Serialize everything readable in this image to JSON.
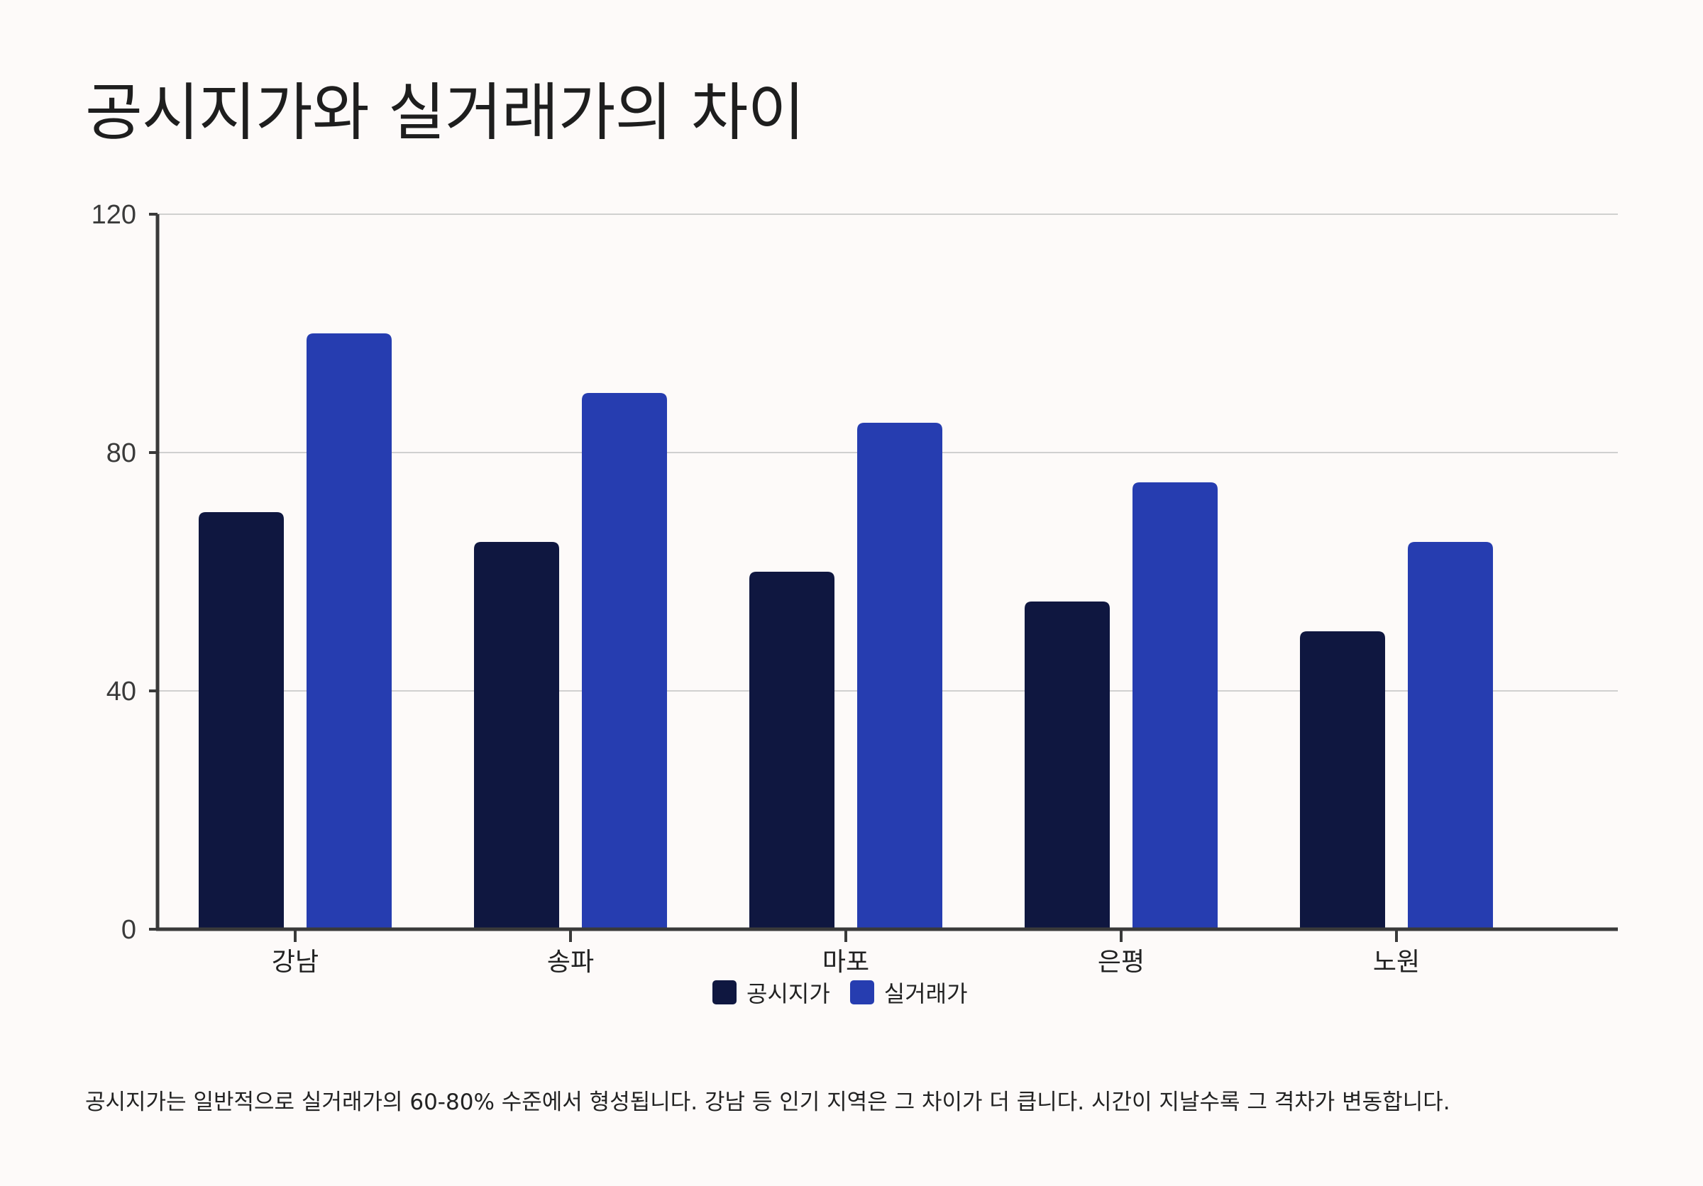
{
  "title": "공시지가와 실거래가의 차이",
  "note": "공시지가는 일반적으로 실거래가의 60-80% 수준에서 형성됩니다. 강남 등 인기 지역은 그 차이가 더 큽니다. 시간이 지날수록 그 격차가 변동합니다.",
  "colors": {
    "background": "#fdfaf9",
    "series_1": "#0f1740",
    "series_2": "#263db0",
    "axis": "#3a3a3a",
    "grid": "#d0d0d0"
  },
  "chart_data": {
    "type": "bar",
    "categories": [
      "강남",
      "송파",
      "마포",
      "은평",
      "노원"
    ],
    "series": [
      {
        "name": "공시지가",
        "values": [
          70,
          65,
          60,
          55,
          50
        ]
      },
      {
        "name": "실거래가",
        "values": [
          100,
          90,
          85,
          75,
          65
        ]
      }
    ],
    "ylim": [
      0,
      120
    ],
    "yticks": [
      0,
      40,
      80,
      120
    ],
    "grid": true,
    "legend_position": "bottom-center"
  }
}
